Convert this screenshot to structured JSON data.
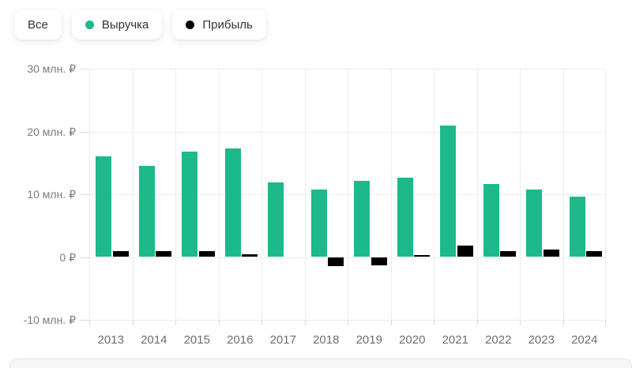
{
  "filter_bar": {
    "all_label": "Все",
    "legend": [
      {
        "label": "Выручка",
        "color": "#1db98b"
      },
      {
        "label": "Прибыль",
        "color": "#000000"
      }
    ]
  },
  "chart_data": {
    "type": "bar",
    "title": "",
    "categories": [
      "2013",
      "2014",
      "2015",
      "2016",
      "2017",
      "2018",
      "2019",
      "2020",
      "2021",
      "2022",
      "2023",
      "2024"
    ],
    "series": [
      {
        "name": "Выручка",
        "color": "#1db98b",
        "values": [
          16.0,
          14.5,
          16.8,
          17.3,
          11.9,
          10.7,
          12.1,
          12.6,
          21.0,
          11.6,
          10.7,
          9.6
        ]
      },
      {
        "name": "Прибыль",
        "color": "#000000",
        "values": [
          0.9,
          1.0,
          1.0,
          0.5,
          0,
          -1.5,
          -1.3,
          0.3,
          1.8,
          1.0,
          1.2,
          0.9
        ]
      }
    ],
    "y_ticks": [
      {
        "value": 30,
        "label": "30 млн. ₽"
      },
      {
        "value": 20,
        "label": "20 млн. ₽"
      },
      {
        "value": 10,
        "label": "10 млн. ₽"
      },
      {
        "value": 0,
        "label": "0 ₽"
      },
      {
        "value": -10,
        "label": "-10 млн. ₽"
      }
    ],
    "ylim": [
      -10,
      30
    ],
    "grid": true,
    "legend_position": "top"
  }
}
